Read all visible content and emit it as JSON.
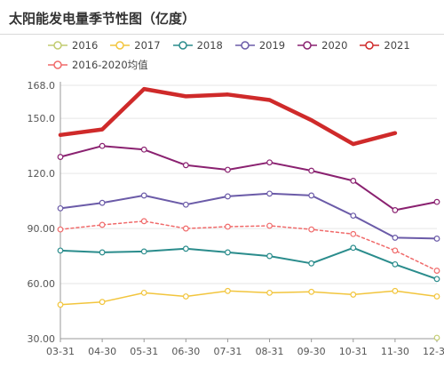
{
  "page": {
    "title": "太阳能发电量季节性图（亿度）"
  },
  "chart_data": {
    "type": "line",
    "title": "太阳能发电量季节性图（亿度）",
    "categories": [
      "03-31",
      "04-30",
      "05-31",
      "06-30",
      "07-31",
      "08-31",
      "09-30",
      "10-31",
      "11-30",
      "12-31"
    ],
    "yticks": [
      "30.00",
      "60.00",
      "90.00",
      "120.0",
      "150.0",
      "168.0"
    ],
    "ytick_values": [
      30,
      60,
      90,
      120,
      150,
      168
    ],
    "ylim": [
      30,
      168
    ],
    "grid": true,
    "legend_position": "top-left",
    "series": [
      {
        "name": "2016",
        "color": "#c2cc70",
        "dashed": false,
        "width": 1.5,
        "values": [
          null,
          null,
          null,
          null,
          null,
          null,
          null,
          null,
          null,
          30.5
        ]
      },
      {
        "name": "2017",
        "color": "#f2c53d",
        "dashed": false,
        "width": 1.5,
        "values": [
          48.5,
          50.0,
          55.0,
          53.0,
          56.0,
          55.0,
          55.5,
          54.0,
          56.0,
          53.0
        ]
      },
      {
        "name": "2018",
        "color": "#2a8c8c",
        "dashed": false,
        "width": 2,
        "values": [
          78.0,
          77.0,
          77.5,
          79.0,
          77.0,
          75.0,
          71.0,
          79.5,
          70.5,
          62.5
        ]
      },
      {
        "name": "2019",
        "color": "#6b5ba8",
        "dashed": false,
        "width": 2,
        "values": [
          101.0,
          104.0,
          108.0,
          103.0,
          107.5,
          109.0,
          108.0,
          97.0,
          85.0,
          84.5
        ]
      },
      {
        "name": "2020",
        "color": "#8a2170",
        "dashed": false,
        "width": 2,
        "values": [
          129.0,
          135.0,
          133.0,
          124.5,
          122.0,
          126.0,
          121.5,
          116.0,
          100.0,
          104.5
        ]
      },
      {
        "name": "2021",
        "color": "#cf2a2a",
        "dashed": false,
        "width": 4.5,
        "values": [
          141.0,
          144.0,
          166.0,
          162.0,
          163.0,
          160.0,
          149.0,
          136.0,
          142.0,
          null
        ]
      },
      {
        "name": "2016-2020均值",
        "color": "#f06a6a",
        "dashed": true,
        "width": 1.5,
        "values": [
          89.5,
          92.0,
          94.0,
          90.0,
          91.0,
          91.5,
          89.5,
          87.0,
          78.0,
          67.0
        ]
      }
    ]
  }
}
